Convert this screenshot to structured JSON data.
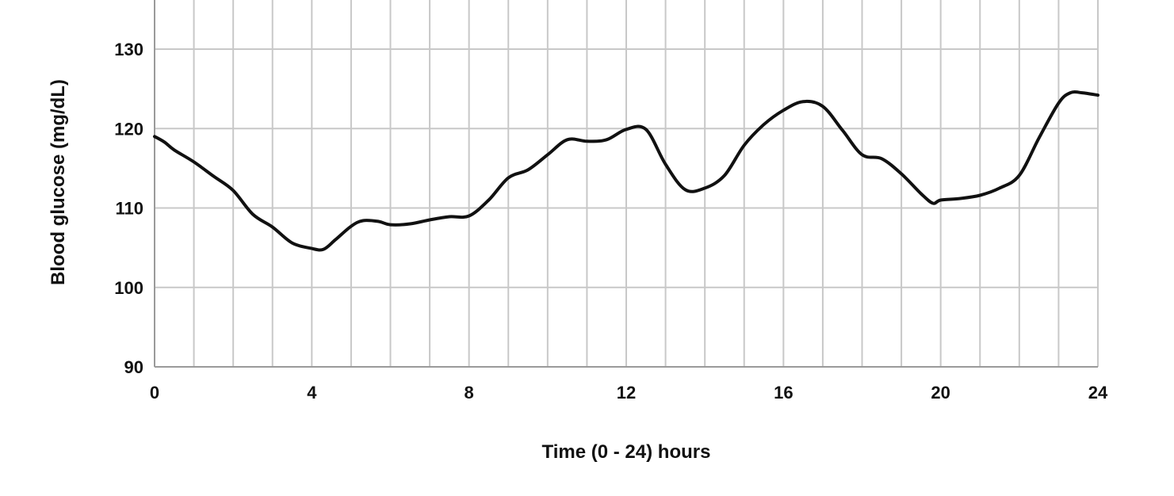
{
  "chart_data": {
    "type": "line",
    "title": "",
    "xlabel": "Time (0 - 24) hours",
    "ylabel": "Blood glucose (mg/dL)",
    "xlim": [
      0,
      24
    ],
    "ylim": [
      90,
      130
    ],
    "xticks": [
      0,
      4,
      8,
      12,
      16,
      20,
      24
    ],
    "yticks": [
      90,
      100,
      110,
      120,
      130
    ],
    "grid": true,
    "series": [
      {
        "color": "#111111",
        "x": [
          0,
          0.25,
          0.5,
          1.0,
          1.5,
          2.0,
          2.5,
          3.0,
          3.5,
          4.0,
          4.3,
          4.6,
          5.0,
          5.3,
          5.7,
          6.0,
          6.5,
          7.0,
          7.5,
          8.0,
          8.5,
          9.0,
          9.5,
          10.0,
          10.5,
          11.0,
          11.5,
          12.0,
          12.5,
          13.0,
          13.5,
          14.0,
          14.5,
          15.0,
          15.5,
          16.0,
          16.5,
          17.0,
          17.5,
          18.0,
          18.5,
          19.0,
          19.5,
          19.8,
          20.0,
          20.5,
          21.0,
          21.5,
          22.0,
          22.5,
          23.0,
          23.3,
          23.6,
          24.0
        ],
        "y": [
          119.0,
          118.3,
          117.3,
          115.8,
          114.0,
          112.2,
          109.2,
          107.6,
          105.6,
          104.9,
          104.8,
          106.0,
          107.7,
          108.4,
          108.3,
          107.9,
          108.0,
          108.5,
          108.9,
          109.0,
          111.0,
          113.8,
          114.8,
          116.7,
          118.6,
          118.4,
          118.6,
          119.9,
          119.9,
          115.5,
          112.3,
          112.5,
          114.1,
          117.9,
          120.5,
          122.3,
          123.4,
          122.8,
          119.8,
          116.7,
          116.2,
          114.3,
          111.8,
          110.6,
          111.0,
          111.2,
          111.6,
          112.5,
          114.1,
          118.8,
          123.2,
          124.5,
          124.5,
          124.2
        ]
      }
    ]
  }
}
